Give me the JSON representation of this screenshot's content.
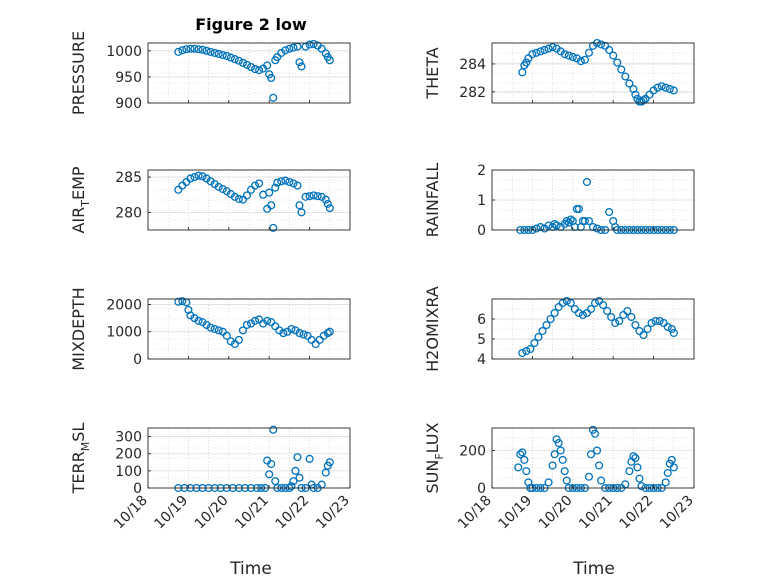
{
  "figure": {
    "title": "Figure 2 low",
    "xlabel": "Time"
  },
  "colors": {
    "marker": "#0072BD",
    "grid": "#c9c9c9",
    "axis": "#262626"
  },
  "x_ticks": [
    "10/18",
    "10/19",
    "10/20",
    "10/21",
    "10/22",
    "10/23"
  ],
  "chart_data": [
    {
      "type": "scatter",
      "ylabel": "PRESSURE",
      "ylabel_sub": "",
      "ylim": [
        900,
        1015
      ],
      "yticks": [
        900,
        950,
        1000
      ],
      "grid": "on",
      "marker": "open-circle",
      "series": [
        {
          "x": [
            18.75,
            18.85,
            18.95,
            19.05,
            19.15,
            19.25,
            19.35,
            19.45,
            19.55,
            19.65,
            19.75,
            19.85,
            19.95,
            20.05,
            20.15,
            20.25,
            20.35,
            20.45,
            20.55,
            20.65,
            20.75,
            20.85,
            20.95,
            21.0,
            21.05,
            21.1,
            21.15,
            21.2,
            21.3,
            21.4,
            21.5,
            21.6,
            21.7,
            21.75,
            21.8,
            21.9,
            22.0,
            22.1,
            22.2,
            22.3,
            22.4,
            22.45,
            22.5
          ],
          "y": [
            998,
            1001,
            1003,
            1004,
            1004,
            1003,
            1002,
            1000,
            998,
            996,
            994,
            992,
            990,
            987,
            984,
            981,
            977,
            973,
            969,
            965,
            963,
            966,
            972,
            955,
            948,
            910,
            982,
            988,
            996,
            1001,
            1004,
            1006,
            1008,
            978,
            970,
            1008,
            1012,
            1013,
            1010,
            1004,
            995,
            988,
            982
          ]
        }
      ]
    },
    {
      "type": "scatter",
      "ylabel": "THETA",
      "ylabel_sub": "",
      "ylim": [
        281.2,
        285.5
      ],
      "yticks": [
        282,
        284
      ],
      "grid": "on",
      "marker": "open-circle",
      "series": [
        {
          "x": [
            18.75,
            18.8,
            18.85,
            18.9,
            19.0,
            19.1,
            19.2,
            19.3,
            19.4,
            19.5,
            19.6,
            19.7,
            19.8,
            19.9,
            20.0,
            20.1,
            20.2,
            20.3,
            20.4,
            20.5,
            20.6,
            20.7,
            20.8,
            20.9,
            21.0,
            21.1,
            21.2,
            21.3,
            21.4,
            21.5,
            21.55,
            21.6,
            21.65,
            21.7,
            21.75,
            21.8,
            21.9,
            22.0,
            22.1,
            22.2,
            22.3,
            22.4,
            22.5
          ],
          "y": [
            283.4,
            283.9,
            284.1,
            284.4,
            284.7,
            284.8,
            284.9,
            285.0,
            285.1,
            285.2,
            285.1,
            284.9,
            284.7,
            284.6,
            284.5,
            284.4,
            284.2,
            284.3,
            284.8,
            285.3,
            285.5,
            285.4,
            285.3,
            285.0,
            284.6,
            284.1,
            283.6,
            283.1,
            282.6,
            282.2,
            281.8,
            281.5,
            281.3,
            281.3,
            281.4,
            281.5,
            281.8,
            282.1,
            282.3,
            282.4,
            282.3,
            282.2,
            282.1
          ]
        }
      ]
    },
    {
      "type": "scatter",
      "ylabel": "AIR",
      "ylabel_sub": "T",
      "ylabel_suffix": "EMP",
      "ylim": [
        277.5,
        286
      ],
      "yticks": [
        280,
        285
      ],
      "grid": "on",
      "marker": "open-circle",
      "series": [
        {
          "x": [
            18.75,
            18.85,
            18.95,
            19.05,
            19.15,
            19.25,
            19.35,
            19.45,
            19.55,
            19.65,
            19.75,
            19.85,
            19.95,
            20.05,
            20.15,
            20.25,
            20.35,
            20.45,
            20.55,
            20.65,
            20.75,
            20.85,
            20.95,
            21.0,
            21.05,
            21.1,
            21.15,
            21.2,
            21.3,
            21.4,
            21.5,
            21.6,
            21.7,
            21.75,
            21.8,
            21.9,
            22.0,
            22.1,
            22.2,
            22.3,
            22.4,
            22.45,
            22.5
          ],
          "y": [
            283.2,
            283.8,
            284.3,
            284.8,
            285.0,
            285.2,
            285.1,
            284.8,
            284.4,
            284.0,
            283.6,
            283.3,
            283.0,
            282.6,
            282.2,
            281.9,
            281.8,
            282.4,
            283.2,
            283.8,
            284.1,
            282.5,
            280.5,
            282.8,
            281.0,
            277.8,
            283.5,
            284.2,
            284.4,
            284.5,
            284.3,
            284.1,
            283.8,
            281.0,
            280.0,
            282.2,
            282.3,
            282.4,
            282.3,
            282.2,
            281.8,
            281.2,
            280.6
          ]
        }
      ]
    },
    {
      "type": "scatter",
      "ylabel": "RAINFALL",
      "ylabel_sub": "",
      "ylim": [
        0,
        2
      ],
      "yticks": [
        0,
        1,
        2
      ],
      "grid": "on",
      "marker": "open-circle",
      "series": [
        {
          "x": [
            18.7,
            18.8,
            18.9,
            19.0,
            19.1,
            19.2,
            19.3,
            19.4,
            19.5,
            19.55,
            19.6,
            19.7,
            19.8,
            19.85,
            19.9,
            19.95,
            20.0,
            20.05,
            20.1,
            20.15,
            20.2,
            20.25,
            20.3,
            20.35,
            20.4,
            20.5,
            20.6,
            20.7,
            20.8,
            20.9,
            21.0,
            21.05,
            21.1,
            21.2,
            21.3,
            21.4,
            21.5,
            21.6,
            21.7,
            21.8,
            21.9,
            22.0,
            22.1,
            22.2,
            22.3,
            22.4,
            22.5
          ],
          "y": [
            0,
            0,
            0,
            0,
            0.05,
            0.1,
            0.05,
            0.15,
            0.1,
            0.2,
            0.15,
            0.1,
            0.2,
            0.3,
            0.25,
            0.35,
            0.3,
            0.1,
            0.7,
            0.7,
            0.1,
            0.3,
            0.3,
            1.6,
            0.3,
            0.1,
            0.05,
            0,
            0,
            0.6,
            0.3,
            0.1,
            0,
            0,
            0,
            0,
            0,
            0,
            0,
            0,
            0,
            0,
            0,
            0,
            0,
            0,
            0
          ]
        }
      ]
    },
    {
      "type": "scatter",
      "ylabel": "MIXDEPTH",
      "ylabel_sub": "",
      "ylim": [
        0,
        2200
      ],
      "yticks": [
        0,
        1000,
        2000
      ],
      "grid": "on",
      "marker": "open-circle",
      "series": [
        {
          "x": [
            18.75,
            18.85,
            18.95,
            19.0,
            19.05,
            19.15,
            19.25,
            19.35,
            19.45,
            19.55,
            19.65,
            19.75,
            19.85,
            19.95,
            20.05,
            20.15,
            20.25,
            20.35,
            20.45,
            20.55,
            20.65,
            20.75,
            20.85,
            20.95,
            21.05,
            21.15,
            21.25,
            21.35,
            21.45,
            21.55,
            21.65,
            21.75,
            21.85,
            21.95,
            22.05,
            22.15,
            22.25,
            22.35,
            22.45,
            22.5
          ],
          "y": [
            2100,
            2120,
            2080,
            1800,
            1600,
            1500,
            1400,
            1350,
            1250,
            1150,
            1100,
            1050,
            1000,
            850,
            650,
            550,
            700,
            1050,
            1250,
            1300,
            1400,
            1450,
            1300,
            1400,
            1350,
            1200,
            1050,
            950,
            1000,
            1100,
            1050,
            950,
            900,
            850,
            700,
            550,
            700,
            850,
            950,
            1000
          ]
        }
      ]
    },
    {
      "type": "scatter",
      "ylabel": "H2OMIXRA",
      "ylabel_sub": "",
      "ylim": [
        4,
        7
      ],
      "yticks": [
        4,
        5,
        6
      ],
      "grid": "on",
      "marker": "open-circle",
      "series": [
        {
          "x": [
            18.75,
            18.85,
            18.95,
            19.05,
            19.15,
            19.25,
            19.35,
            19.45,
            19.55,
            19.65,
            19.75,
            19.85,
            19.95,
            20.05,
            20.15,
            20.25,
            20.35,
            20.45,
            20.55,
            20.65,
            20.75,
            20.85,
            20.95,
            21.05,
            21.15,
            21.25,
            21.35,
            21.45,
            21.55,
            21.65,
            21.75,
            21.85,
            21.95,
            22.05,
            22.15,
            22.25,
            22.35,
            22.45,
            22.5
          ],
          "y": [
            4.3,
            4.4,
            4.5,
            4.8,
            5.1,
            5.4,
            5.7,
            6.0,
            6.3,
            6.6,
            6.8,
            6.9,
            6.8,
            6.5,
            6.3,
            6.2,
            6.3,
            6.5,
            6.8,
            6.9,
            6.7,
            6.4,
            6.1,
            5.8,
            5.9,
            6.2,
            6.4,
            6.1,
            5.7,
            5.4,
            5.2,
            5.5,
            5.8,
            5.9,
            5.9,
            5.8,
            5.6,
            5.5,
            5.3
          ]
        }
      ]
    },
    {
      "type": "scatter",
      "ylabel": "TERR",
      "ylabel_sub": "M",
      "ylabel_suffix": "SL",
      "ylim": [
        0,
        350
      ],
      "yticks": [
        0,
        100,
        200,
        300
      ],
      "grid": "on",
      "marker": "open-circle",
      "series": [
        {
          "x": [
            18.75,
            18.9,
            19.05,
            19.2,
            19.35,
            19.5,
            19.65,
            19.8,
            19.95,
            20.1,
            20.25,
            20.4,
            20.55,
            20.7,
            20.8,
            20.9,
            20.95,
            21.0,
            21.05,
            21.1,
            21.15,
            21.2,
            21.3,
            21.4,
            21.5,
            21.55,
            21.6,
            21.65,
            21.7,
            21.75,
            21.8,
            21.9,
            22.0,
            22.05,
            22.1,
            22.2,
            22.3,
            22.4,
            22.45,
            22.5
          ],
          "y": [
            0,
            0,
            0,
            0,
            0,
            0,
            0,
            0,
            0,
            0,
            0,
            0,
            0,
            0,
            0,
            0,
            160,
            80,
            140,
            340,
            40,
            0,
            0,
            0,
            0,
            10,
            40,
            100,
            180,
            60,
            0,
            0,
            170,
            20,
            0,
            0,
            20,
            90,
            130,
            150
          ]
        }
      ]
    },
    {
      "type": "scatter",
      "ylabel": "SUN",
      "ylabel_sub": "F",
      "ylabel_suffix": "LUX",
      "ylim": [
        0,
        320
      ],
      "yticks": [
        0,
        200
      ],
      "grid": "on",
      "marker": "open-circle",
      "series": [
        {
          "x": [
            18.65,
            18.7,
            18.75,
            18.8,
            18.85,
            18.9,
            18.95,
            19.0,
            19.1,
            19.2,
            19.3,
            19.4,
            19.5,
            19.55,
            19.6,
            19.65,
            19.7,
            19.75,
            19.8,
            19.85,
            19.9,
            20.0,
            20.1,
            20.2,
            20.3,
            20.4,
            20.45,
            20.5,
            20.55,
            20.6,
            20.65,
            20.7,
            20.8,
            20.9,
            21.0,
            21.1,
            21.2,
            21.3,
            21.4,
            21.45,
            21.5,
            21.55,
            21.6,
            21.65,
            21.7,
            21.8,
            21.9,
            22.0,
            22.1,
            22.2,
            22.3,
            22.35,
            22.4,
            22.45,
            22.5
          ],
          "y": [
            110,
            180,
            190,
            150,
            90,
            30,
            0,
            0,
            0,
            0,
            0,
            30,
            120,
            180,
            260,
            240,
            200,
            150,
            90,
            40,
            0,
            0,
            0,
            0,
            0,
            60,
            180,
            310,
            290,
            200,
            120,
            40,
            0,
            0,
            0,
            0,
            0,
            20,
            90,
            140,
            170,
            160,
            110,
            50,
            10,
            0,
            0,
            0,
            0,
            0,
            30,
            80,
            130,
            150,
            110
          ]
        }
      ]
    }
  ]
}
